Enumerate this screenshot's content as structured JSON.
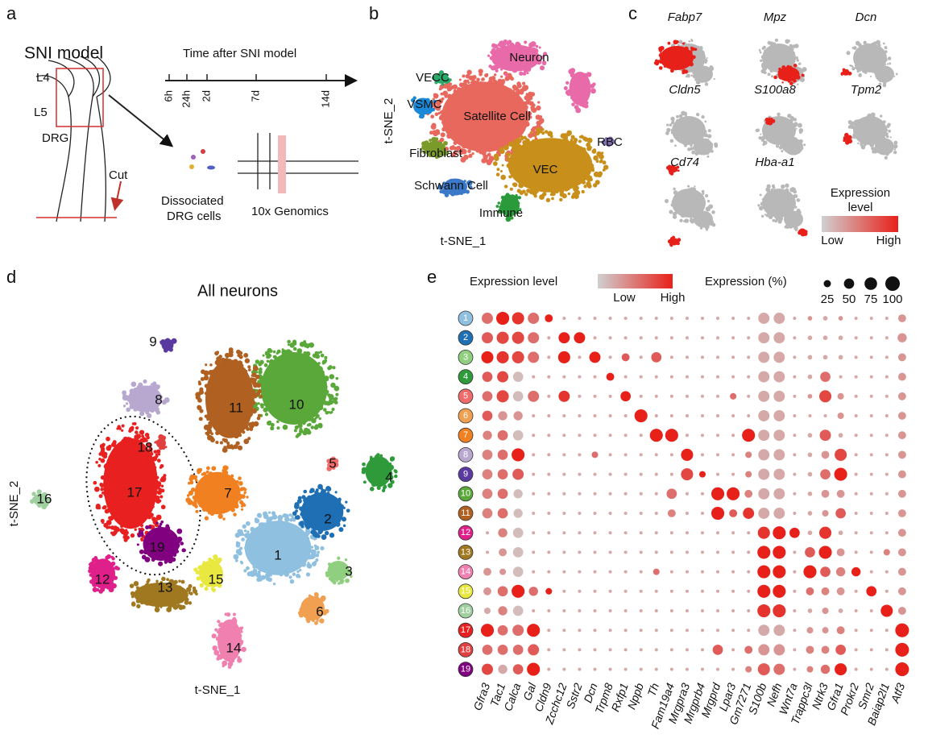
{
  "panel_a": {
    "letter": "a",
    "model": "SNI model",
    "l4": "L4",
    "l5": "L5",
    "drg": "DRG",
    "cut": "Cut",
    "timeline_title": "Time after SNI model",
    "times": [
      "6h",
      "24h",
      "2d",
      "7d",
      "14d"
    ],
    "dissociated": [
      "Dissociated",
      "DRG cells"
    ],
    "genomics": "10x Genomics"
  },
  "panel_b": {
    "letter": "b",
    "labels": [
      "Neuron",
      "VECC",
      "VSMC",
      "Satellite Cell",
      "RBC",
      "Fibroblast",
      "Schwann Cell",
      "Immune",
      "VEC"
    ],
    "x_label": "t-SNE_1",
    "y_label": "t-SNE_2"
  },
  "panel_c": {
    "letter": "c",
    "genes": [
      "Fabp7",
      "Mpz",
      "Dcn",
      "Cldn5",
      "S100a8",
      "Tpm2",
      "Cd74",
      "Hba-a1"
    ],
    "legend_title": [
      "Expression",
      "level"
    ],
    "low": "Low",
    "high": "High"
  },
  "panel_d": {
    "letter": "d",
    "title": "All neurons",
    "x_label": "t-SNE_1",
    "y_label": "t-SNE_2",
    "clusters": [
      {
        "label": "1",
        "color": "#8fc0e0"
      },
      {
        "label": "2",
        "color": "#1f6fb5"
      },
      {
        "label": "3",
        "color": "#8fcf7f"
      },
      {
        "label": "4",
        "color": "#2e9a3a"
      },
      {
        "label": "5",
        "color": "#f06a6a"
      },
      {
        "label": "6",
        "color": "#f0a050"
      },
      {
        "label": "7",
        "color": "#f08020"
      },
      {
        "label": "8",
        "color": "#b8a8d0"
      },
      {
        "label": "9",
        "color": "#5a3aa0"
      },
      {
        "label": "10",
        "color": "#5aa83a"
      },
      {
        "label": "11",
        "color": "#b06020"
      },
      {
        "label": "12",
        "color": "#e0208a"
      },
      {
        "label": "13",
        "color": "#a07820"
      },
      {
        "label": "14",
        "color": "#f080b0"
      },
      {
        "label": "15",
        "color": "#e8e840"
      },
      {
        "label": "16",
        "color": "#a0d0a0"
      },
      {
        "label": "17",
        "color": "#e82020"
      },
      {
        "label": "18",
        "color": "#e04040"
      },
      {
        "label": "19",
        "color": "#800080"
      }
    ]
  },
  "panel_e": {
    "letter": "e",
    "level_title": "Expression level",
    "low": "Low",
    "high": "High",
    "low_color": "#d0d0d0",
    "high_color": "#e8201a",
    "pct_title": "Expression (%)",
    "size_ticks": [
      25,
      50,
      75,
      100
    ],
    "genes": [
      "Gfra3",
      "Tac1",
      "Calca",
      "Gal",
      "Cldn9",
      "Zcchc12",
      "Sstr2",
      "Dcn",
      "Trpm8",
      "Rxfp1",
      "Nppb",
      "Th",
      "Fam19a4",
      "Mrgpra3",
      "Mrgprb4",
      "Mrgprd",
      "Lpar3",
      "Gm7271",
      "S100b",
      "Nefh",
      "Wnt7a",
      "Trappc3l",
      "Ntrk3",
      "Gfra1",
      "Prokr2",
      "Smr2",
      "Baiap2l1",
      "Atf3"
    ],
    "rows": [
      {
        "label": "1",
        "percent": [
          60,
          80,
          70,
          60,
          30,
          5,
          5,
          5,
          5,
          5,
          5,
          5,
          5,
          5,
          5,
          5,
          5,
          5,
          60,
          60,
          5,
          10,
          10,
          10,
          5,
          5,
          5,
          30
        ],
        "level": [
          5,
          9,
          8,
          5,
          9,
          2,
          2,
          2,
          2,
          2,
          2,
          2,
          2,
          2,
          2,
          2,
          2,
          2,
          2,
          2,
          2,
          3,
          2,
          3,
          2,
          2,
          2,
          3
        ]
      },
      {
        "label": "2",
        "percent": [
          60,
          70,
          70,
          60,
          5,
          60,
          60,
          5,
          5,
          5,
          5,
          5,
          5,
          5,
          5,
          5,
          5,
          5,
          60,
          60,
          5,
          10,
          10,
          10,
          5,
          5,
          5,
          40
        ],
        "level": [
          6,
          7,
          7,
          5,
          2,
          9,
          9,
          2,
          2,
          2,
          2,
          2,
          2,
          2,
          2,
          2,
          2,
          2,
          2,
          2,
          2,
          2,
          2,
          2,
          2,
          2,
          2,
          3
        ]
      },
      {
        "label": "3",
        "percent": [
          70,
          70,
          70,
          60,
          5,
          70,
          5,
          60,
          5,
          30,
          5,
          50,
          5,
          5,
          5,
          5,
          5,
          5,
          60,
          60,
          5,
          10,
          10,
          10,
          5,
          5,
          5,
          30
        ],
        "level": [
          9,
          8,
          7,
          5,
          2,
          9,
          2,
          9,
          2,
          6,
          2,
          6,
          2,
          2,
          2,
          2,
          2,
          2,
          2,
          2,
          2,
          2,
          2,
          2,
          2,
          2,
          2,
          3
        ]
      },
      {
        "label": "4",
        "percent": [
          50,
          60,
          50,
          5,
          5,
          5,
          5,
          5,
          30,
          5,
          5,
          5,
          5,
          5,
          5,
          5,
          5,
          5,
          60,
          60,
          5,
          10,
          50,
          5,
          5,
          5,
          5,
          30
        ],
        "level": [
          6,
          7,
          1,
          2,
          2,
          2,
          2,
          2,
          9,
          2,
          2,
          2,
          2,
          2,
          2,
          2,
          2,
          2,
          2,
          2,
          2,
          2,
          5,
          2,
          2,
          2,
          2,
          3
        ]
      },
      {
        "label": "5",
        "percent": [
          50,
          70,
          50,
          60,
          5,
          60,
          5,
          5,
          5,
          50,
          5,
          5,
          5,
          5,
          5,
          5,
          20,
          5,
          60,
          60,
          5,
          10,
          70,
          20,
          5,
          5,
          5,
          30
        ],
        "level": [
          5,
          7,
          1,
          5,
          2,
          8,
          2,
          2,
          2,
          9,
          2,
          2,
          2,
          2,
          2,
          2,
          5,
          2,
          2,
          2,
          2,
          3,
          7,
          3,
          2,
          2,
          2,
          3
        ]
      },
      {
        "label": "6",
        "percent": [
          50,
          40,
          40,
          5,
          5,
          5,
          5,
          5,
          5,
          5,
          80,
          5,
          5,
          5,
          5,
          5,
          5,
          5,
          60,
          60,
          5,
          5,
          5,
          20,
          5,
          5,
          5,
          30
        ],
        "level": [
          6,
          3,
          3,
          2,
          2,
          2,
          2,
          2,
          2,
          2,
          9,
          2,
          2,
          2,
          2,
          2,
          2,
          2,
          2,
          2,
          2,
          2,
          2,
          3,
          2,
          2,
          2,
          3
        ]
      },
      {
        "label": "7",
        "percent": [
          40,
          50,
          50,
          5,
          5,
          5,
          5,
          5,
          5,
          5,
          5,
          80,
          80,
          5,
          5,
          5,
          5,
          80,
          60,
          60,
          5,
          10,
          60,
          10,
          5,
          5,
          5,
          30
        ],
        "level": [
          4,
          5,
          1,
          2,
          2,
          2,
          2,
          2,
          2,
          2,
          2,
          9,
          9,
          2,
          2,
          2,
          2,
          9,
          2,
          2,
          2,
          2,
          6,
          2,
          2,
          2,
          2,
          3
        ]
      },
      {
        "label": "8",
        "percent": [
          50,
          50,
          80,
          5,
          5,
          5,
          5,
          20,
          5,
          5,
          5,
          5,
          5,
          70,
          5,
          5,
          5,
          20,
          60,
          60,
          5,
          10,
          30,
          70,
          5,
          5,
          5,
          30
        ],
        "level": [
          4,
          5,
          9,
          2,
          2,
          2,
          2,
          5,
          2,
          2,
          2,
          2,
          2,
          9,
          2,
          2,
          2,
          4,
          2,
          2,
          2,
          2,
          3,
          7,
          2,
          2,
          2,
          3
        ]
      },
      {
        "label": "9",
        "percent": [
          50,
          50,
          60,
          5,
          5,
          5,
          5,
          5,
          5,
          5,
          5,
          5,
          5,
          70,
          20,
          5,
          5,
          20,
          60,
          60,
          5,
          10,
          50,
          80,
          5,
          5,
          5,
          30
        ],
        "level": [
          4,
          5,
          6,
          2,
          2,
          2,
          2,
          2,
          2,
          2,
          2,
          2,
          2,
          7,
          9,
          2,
          2,
          4,
          2,
          2,
          2,
          2,
          5,
          9,
          2,
          2,
          2,
          3
        ]
      },
      {
        "label": "10",
        "percent": [
          50,
          50,
          40,
          5,
          5,
          5,
          5,
          5,
          5,
          5,
          5,
          5,
          50,
          5,
          5,
          80,
          80,
          30,
          60,
          60,
          5,
          10,
          30,
          30,
          5,
          5,
          5,
          30
        ],
        "level": [
          4,
          5,
          1,
          2,
          2,
          2,
          2,
          2,
          2,
          2,
          2,
          2,
          5,
          2,
          2,
          9,
          9,
          4,
          2,
          2,
          2,
          2,
          3,
          3,
          2,
          2,
          2,
          3
        ]
      },
      {
        "label": "11",
        "percent": [
          50,
          50,
          40,
          5,
          5,
          5,
          5,
          5,
          5,
          5,
          5,
          5,
          30,
          5,
          5,
          80,
          30,
          60,
          60,
          60,
          5,
          10,
          20,
          50,
          5,
          5,
          5,
          30
        ],
        "level": [
          4,
          5,
          1,
          2,
          2,
          2,
          2,
          2,
          2,
          2,
          2,
          2,
          4,
          2,
          2,
          9,
          6,
          8,
          2,
          2,
          2,
          2,
          3,
          6,
          2,
          2,
          2,
          3
        ]
      },
      {
        "label": "12",
        "percent": [
          5,
          40,
          50,
          5,
          5,
          5,
          5,
          5,
          5,
          5,
          5,
          5,
          5,
          5,
          5,
          5,
          5,
          5,
          70,
          80,
          50,
          10,
          70,
          10,
          5,
          5,
          5,
          30
        ],
        "level": [
          2,
          4,
          1,
          2,
          2,
          2,
          2,
          2,
          2,
          2,
          2,
          2,
          2,
          2,
          2,
          2,
          2,
          2,
          8,
          9,
          9,
          2,
          8,
          2,
          2,
          2,
          2,
          3
        ]
      },
      {
        "label": "13",
        "percent": [
          5,
          30,
          50,
          5,
          5,
          5,
          5,
          5,
          5,
          5,
          5,
          5,
          5,
          5,
          5,
          5,
          5,
          5,
          80,
          80,
          5,
          50,
          80,
          30,
          5,
          5,
          20,
          30
        ],
        "level": [
          2,
          3,
          1,
          2,
          2,
          2,
          2,
          2,
          2,
          2,
          2,
          2,
          2,
          2,
          2,
          2,
          2,
          2,
          9,
          9,
          2,
          6,
          9,
          3,
          2,
          2,
          4,
          3
        ]
      },
      {
        "label": "14",
        "percent": [
          30,
          20,
          50,
          5,
          5,
          5,
          5,
          5,
          5,
          5,
          5,
          20,
          5,
          5,
          5,
          5,
          5,
          5,
          80,
          80,
          5,
          80,
          50,
          40,
          40,
          5,
          5,
          30
        ],
        "level": [
          3,
          3,
          1,
          2,
          2,
          2,
          2,
          2,
          2,
          2,
          2,
          5,
          2,
          2,
          2,
          2,
          2,
          2,
          9,
          9,
          2,
          9,
          6,
          4,
          9,
          2,
          2,
          3
        ]
      },
      {
        "label": "15",
        "percent": [
          30,
          50,
          80,
          40,
          20,
          5,
          5,
          5,
          5,
          5,
          5,
          5,
          5,
          5,
          5,
          5,
          5,
          5,
          80,
          80,
          5,
          30,
          30,
          30,
          5,
          50,
          5,
          30
        ],
        "level": [
          3,
          5,
          9,
          5,
          9,
          2,
          2,
          2,
          2,
          2,
          2,
          2,
          2,
          2,
          2,
          2,
          2,
          2,
          9,
          9,
          2,
          5,
          4,
          3,
          2,
          9,
          2,
          3
        ]
      },
      {
        "label": "16",
        "percent": [
          20,
          40,
          50,
          5,
          5,
          5,
          5,
          5,
          5,
          5,
          5,
          5,
          5,
          5,
          5,
          5,
          5,
          5,
          80,
          80,
          5,
          10,
          20,
          10,
          5,
          5,
          70,
          30
        ],
        "level": [
          2,
          4,
          1,
          2,
          2,
          2,
          2,
          2,
          2,
          2,
          2,
          2,
          2,
          2,
          2,
          2,
          2,
          2,
          8,
          8,
          2,
          2,
          3,
          2,
          2,
          2,
          9,
          3
        ]
      },
      {
        "label": "17",
        "percent": [
          80,
          50,
          60,
          80,
          5,
          5,
          5,
          5,
          5,
          5,
          5,
          5,
          5,
          5,
          5,
          5,
          5,
          5,
          60,
          60,
          5,
          20,
          20,
          30,
          5,
          5,
          5,
          90
        ],
        "level": [
          9,
          5,
          5,
          9,
          2,
          2,
          2,
          2,
          2,
          2,
          2,
          2,
          2,
          2,
          2,
          2,
          2,
          2,
          2,
          2,
          2,
          3,
          3,
          4,
          2,
          2,
          2,
          9
        ]
      },
      {
        "label": "18",
        "percent": [
          50,
          50,
          50,
          60,
          5,
          5,
          5,
          5,
          5,
          5,
          5,
          5,
          5,
          5,
          5,
          50,
          5,
          30,
          60,
          60,
          5,
          30,
          30,
          50,
          5,
          5,
          5,
          90
        ],
        "level": [
          5,
          5,
          5,
          6,
          2,
          2,
          2,
          2,
          2,
          2,
          2,
          2,
          2,
          2,
          2,
          6,
          2,
          5,
          3,
          3,
          2,
          4,
          4,
          6,
          2,
          2,
          2,
          9
        ]
      },
      {
        "label": "19",
        "percent": [
          60,
          40,
          50,
          80,
          5,
          5,
          5,
          5,
          5,
          5,
          5,
          5,
          5,
          5,
          5,
          5,
          5,
          20,
          70,
          60,
          5,
          20,
          40,
          70,
          5,
          5,
          5,
          90
        ],
        "level": [
          7,
          2,
          6,
          9,
          2,
          2,
          2,
          2,
          2,
          2,
          2,
          2,
          2,
          2,
          2,
          2,
          2,
          4,
          6,
          5,
          2,
          4,
          5,
          9,
          2,
          2,
          2,
          9
        ]
      }
    ]
  }
}
